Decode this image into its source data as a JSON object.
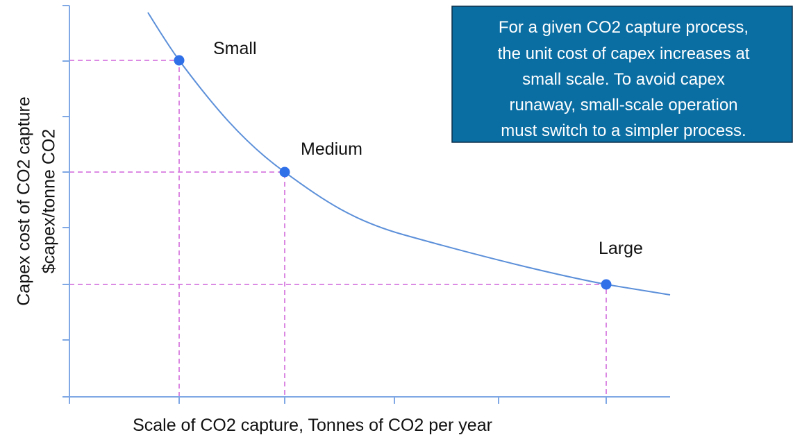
{
  "y_axis_label": [
    "Capex cost of CO2 capture",
    "$capex/tonne CO2"
  ],
  "x_axis_label": "Scale of CO2 capture, Tonnes of CO2 per year",
  "points": [
    {
      "label": "Small"
    },
    {
      "label": "Medium"
    },
    {
      "label": "Large"
    }
  ],
  "annotation": [
    "For a given CO2 capture process,",
    "the unit cost of capex increases at",
    "small scale. To avoid capex",
    "runaway, small-scale operation",
    "must switch to a simpler process."
  ]
}
